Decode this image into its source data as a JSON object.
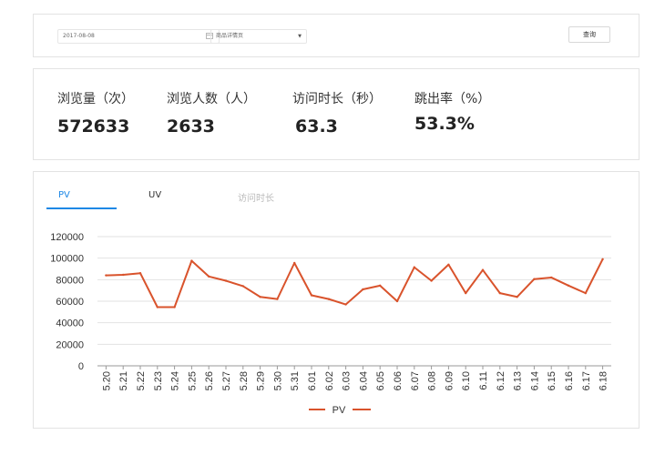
{
  "filter": {
    "date_value": "2017-08-08",
    "page_select": "商品详情页",
    "query_label": "查询"
  },
  "stats": [
    {
      "label": "浏览量（次）",
      "value": "572633"
    },
    {
      "label": "浏览人数（人）",
      "value": "2633"
    },
    {
      "label": "访问时长（秒）",
      "value": "63.3"
    },
    {
      "label": "跳出率（%）",
      "value": "53.3%"
    }
  ],
  "tabs": [
    "PV",
    "UV",
    "访问时长"
  ],
  "colors": {
    "accent": "#1e88e5",
    "series": "#d9532c"
  },
  "chart_data": {
    "type": "line",
    "x": [
      "5.20",
      "5.21",
      "5.22",
      "5.23",
      "5.24",
      "5.25",
      "5.26",
      "5.27",
      "5.28",
      "5.29",
      "5.30",
      "5.31",
      "6.01",
      "6.02",
      "6.03",
      "6.04",
      "6.05",
      "6.06",
      "6.07",
      "6.08",
      "6.09",
      "6.10",
      "6.11",
      "6.12",
      "6.13",
      "6.14",
      "6.15",
      "6.16",
      "6.17",
      "6.18"
    ],
    "series": [
      {
        "name": "PV",
        "values": [
          84000,
          84500,
          86000,
          54500,
          54500,
          97500,
          83000,
          79000,
          74000,
          64000,
          62000,
          95500,
          65500,
          62000,
          57000,
          71000,
          74500,
          60000,
          91500,
          79000,
          94000,
          67500,
          89000,
          67500,
          64000,
          80500,
          82000,
          74500,
          67500,
          99000
        ]
      }
    ],
    "yticks": [
      0,
      20000,
      40000,
      60000,
      80000,
      100000,
      120000
    ],
    "ylim": [
      0,
      120000
    ],
    "legend": "bottom-center",
    "grid": true
  }
}
